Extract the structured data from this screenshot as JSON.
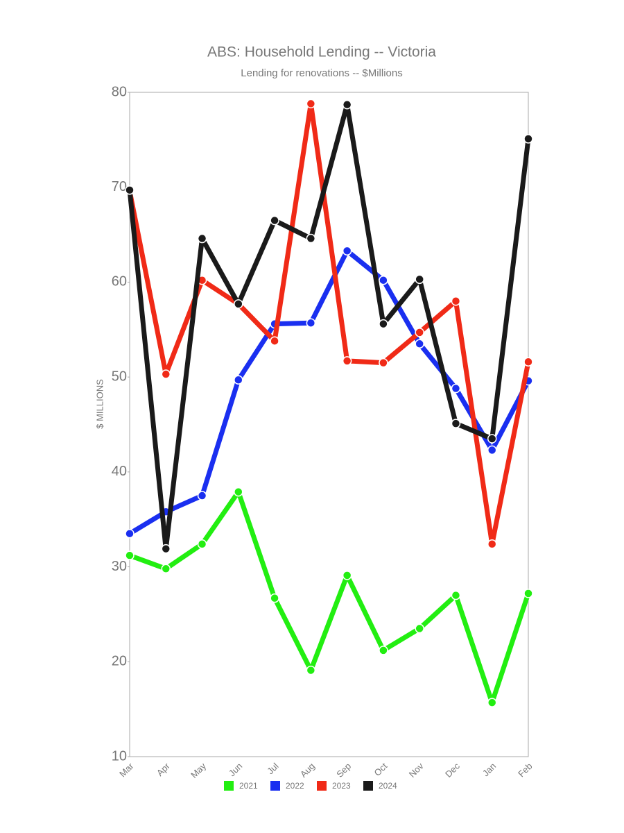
{
  "chart_data": {
    "type": "line",
    "title": "ABS: Household Lending -- Victoria",
    "subtitle": "Lending for renovations -- $Millions",
    "y_label": "$ MILLIONS",
    "categories": [
      "Mar",
      "Apr",
      "May",
      "Jun",
      "Jul",
      "Aug",
      "Sep",
      "Oct",
      "Nov",
      "Dec",
      "Jan",
      "Feb"
    ],
    "series": [
      {
        "name": "2021",
        "color": "#22ee11",
        "values": [
          31.2,
          29.8,
          32.4,
          37.9,
          26.7,
          19.1,
          29.1,
          21.2,
          23.5,
          27.0,
          15.7,
          27.2
        ]
      },
      {
        "name": "2022",
        "color": "#1a2ff0",
        "values": [
          33.5,
          35.8,
          37.5,
          49.7,
          55.6,
          55.7,
          63.3,
          60.2,
          53.5,
          48.8,
          42.3,
          49.6
        ]
      },
      {
        "name": "2023",
        "color": "#f02a17",
        "values": [
          69.6,
          50.3,
          60.2,
          57.7,
          53.8,
          78.8,
          51.7,
          51.5,
          54.7,
          58.0,
          32.4,
          51.6
        ]
      },
      {
        "name": "2024",
        "color": "#1a1a1a",
        "values": [
          69.7,
          31.9,
          64.6,
          57.7,
          66.5,
          64.6,
          78.7,
          55.6,
          60.3,
          45.1,
          43.5,
          75.1
        ]
      }
    ],
    "ylim": [
      10,
      80
    ],
    "yticks": [
      10,
      20,
      30,
      40,
      50,
      60,
      70,
      80
    ],
    "grid": false
  }
}
